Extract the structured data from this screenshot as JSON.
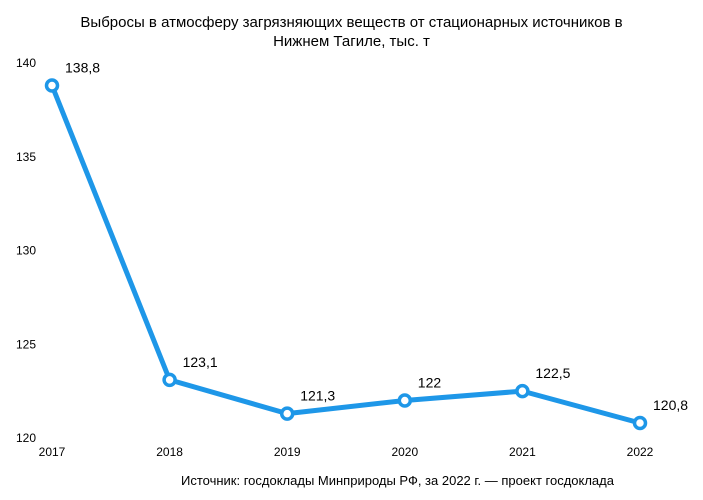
{
  "title_lines": [
    "Выбросы в атмосферу загрязняющих веществ от стационарных источников в",
    "Нижнем Тагиле, тыс. т"
  ],
  "source": "Источник: госдоклады Минприроды РФ, за 2022 г. — проект госдоклада",
  "colors": {
    "line": "#1e97e8",
    "marker_fill": "#ffffff"
  },
  "chart_data": {
    "type": "line",
    "title": "Выбросы в атмосферу загрязняющих веществ от стационарных источников в Нижнем Тагиле, тыс. т",
    "x": [
      "2017",
      "2018",
      "2019",
      "2020",
      "2021",
      "2022"
    ],
    "series": [
      {
        "values": [
          138.8,
          123.1,
          121.3,
          122,
          122.5,
          120.8
        ]
      }
    ],
    "data_labels": [
      "138,8",
      "123,1",
      "121,3",
      "122",
      "122,5",
      "120,8"
    ],
    "yticks": [
      "120",
      "125",
      "130",
      "135",
      "140"
    ],
    "ylim": [
      120,
      140
    ],
    "grid": false,
    "legend": "none"
  }
}
